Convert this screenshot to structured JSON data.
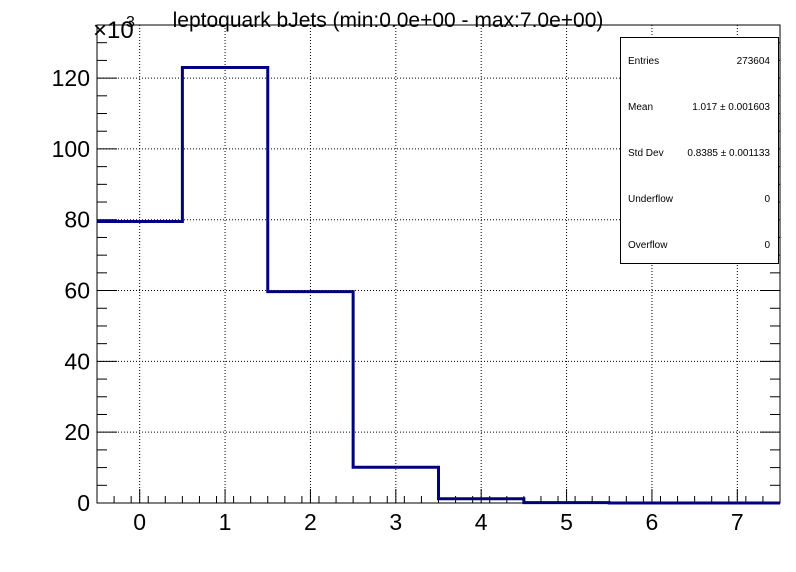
{
  "chart_data": {
    "type": "bar",
    "title": "leptoquark bJets (min:0.0e+00 - max:7.0e+00)",
    "xlabel": "",
    "ylabel": "",
    "y_multiplier_label": "×10",
    "y_multiplier_exponent": "3",
    "bin_edges": [
      -0.5,
      0.5,
      1.5,
      2.5,
      3.5,
      4.5,
      5.5,
      6.5,
      7.5
    ],
    "values": [
      79.5,
      123.0,
      59.7,
      10.1,
      1.2,
      0.1,
      0.0,
      0.0
    ],
    "xlim": [
      -0.5,
      7.5
    ],
    "ylim": [
      0,
      135
    ],
    "x_ticks": [
      0,
      1,
      2,
      3,
      4,
      5,
      6,
      7
    ],
    "y_ticks": [
      0,
      20,
      40,
      60,
      80,
      100,
      120
    ],
    "grid": true,
    "line_color": "#00007f",
    "stats": {
      "entries_label": "Entries",
      "entries": "273604",
      "mean_label": "Mean",
      "mean": "1.017 ± 0.001603",
      "std_label": "Std Dev",
      "std": "0.8385 ± 0.001133",
      "underflow_label": "Underflow",
      "underflow": "0",
      "overflow_label": "Overflow",
      "overflow": "0"
    }
  }
}
